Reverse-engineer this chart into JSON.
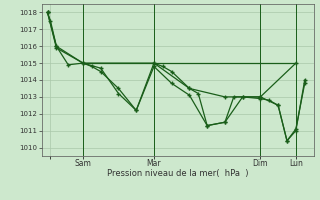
{
  "background_color": "#cde8cd",
  "grid_color": "#aac8aa",
  "line_color": "#1a5e1a",
  "xlabel": "Pression niveau de la mer(  hPa  )",
  "ylim": [
    1009.5,
    1018.5
  ],
  "yticks": [
    1010,
    1011,
    1012,
    1013,
    1014,
    1015,
    1016,
    1017,
    1018
  ],
  "xlim": [
    -4,
    180
  ],
  "xtick_positions": [
    2,
    24,
    72,
    144,
    168
  ],
  "xtick_labels": [
    "",
    "Sam",
    "Mar",
    "Dim",
    "Lun"
  ],
  "vline_positions": [
    24,
    72,
    144,
    168
  ],
  "series1_smooth": {
    "x": [
      0,
      2,
      6,
      24,
      72,
      96,
      120,
      144,
      168
    ],
    "y": [
      1018.0,
      1017.5,
      1016.0,
      1015.0,
      1015.0,
      1013.5,
      1013.0,
      1013.0,
      1015.0
    ]
  },
  "series2": {
    "x": [
      0,
      6,
      14,
      24,
      30,
      36,
      48,
      60,
      72,
      78,
      84,
      96,
      102,
      108,
      120,
      126,
      132,
      144,
      156,
      162,
      168,
      174
    ],
    "y": [
      1018.0,
      1016.0,
      1014.9,
      1015.0,
      1014.8,
      1014.5,
      1013.5,
      1012.2,
      1015.0,
      1014.8,
      1014.5,
      1013.5,
      1013.2,
      1011.3,
      1011.5,
      1013.0,
      1013.0,
      1013.0,
      1012.5,
      1010.4,
      1011.1,
      1013.8
    ]
  },
  "series3": {
    "x": [
      0,
      6,
      24,
      36,
      48,
      60,
      72,
      84,
      96,
      108,
      120,
      132,
      144,
      150,
      156,
      162,
      168,
      174
    ],
    "y": [
      1018.0,
      1015.9,
      1015.0,
      1014.7,
      1013.2,
      1012.2,
      1014.8,
      1013.8,
      1013.1,
      1011.3,
      1011.5,
      1013.0,
      1012.9,
      1012.8,
      1012.5,
      1010.4,
      1011.0,
      1014.0
    ]
  },
  "hline_y": 1015.0,
  "hline_x_start": 24,
  "hline_x_end": 168
}
